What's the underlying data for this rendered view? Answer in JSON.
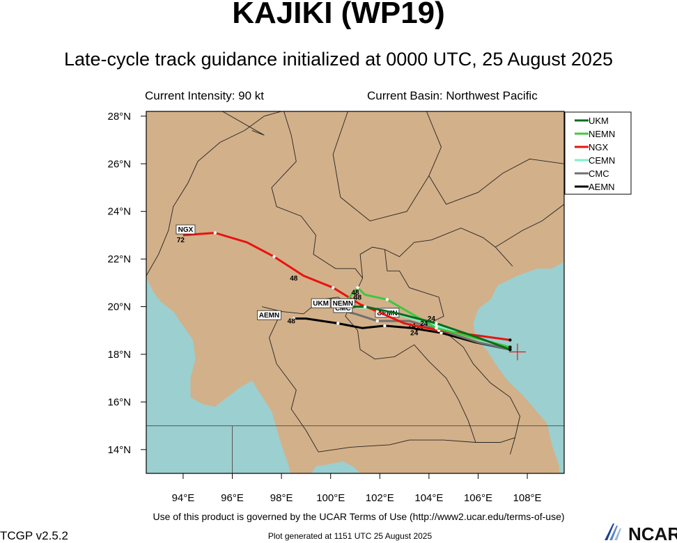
{
  "header": {
    "title": "KAJIKI (WP19)",
    "subtitle": "Late-cycle track guidance initialized at 0000 UTC, 25 August 2025",
    "intensity": "Current Intensity: 90 kt",
    "basin": "Current Basin: Northwest Pacific"
  },
  "map": {
    "lon_range": [
      92.5,
      109.5
    ],
    "lat_range": [
      13.0,
      28.2
    ],
    "x_ticks": [
      "94°E",
      "96°E",
      "98°E",
      "100°E",
      "102°E",
      "104°E",
      "106°E",
      "108°E"
    ],
    "y_ticks": [
      "28°N",
      "26°N",
      "24°N",
      "22°N",
      "20°N",
      "18°N",
      "16°N",
      "14°N"
    ],
    "land_color": "#d2b08a",
    "water_color": "#9ccfcf",
    "current_position": {
      "lon": 107.6,
      "lat": 18.1
    }
  },
  "legend": {
    "items": [
      {
        "name": "UKM",
        "color": "#0b6b1b"
      },
      {
        "name": "NEMN",
        "color": "#3fc83f"
      },
      {
        "name": "NGX",
        "color": "#e8130f"
      },
      {
        "name": "CEMN",
        "color": "#7ff0c8"
      },
      {
        "name": "CMC",
        "color": "#707070"
      },
      {
        "name": "AEMN",
        "color": "#000000"
      }
    ]
  },
  "tracks": [
    {
      "name": "UKM",
      "color": "#0b6b1b",
      "points": [
        [
          107.3,
          18.2
        ],
        [
          106.0,
          18.7
        ],
        [
          104.3,
          19.3
        ],
        [
          102.8,
          19.7
        ],
        [
          101.4,
          20.0
        ],
        [
          100.9,
          20.0
        ]
      ],
      "labels": [
        {
          "text": "24",
          "lon": 103.8,
          "lat": 19.2
        },
        {
          "text": "48",
          "lon": 101.0,
          "lat": 20.5
        }
      ],
      "tag": {
        "text": "UKM",
        "lon": 99.6,
        "lat": 20.1
      }
    },
    {
      "name": "NEMN",
      "color": "#3fc83f",
      "points": [
        [
          107.3,
          18.3
        ],
        [
          106.2,
          18.6
        ],
        [
          104.3,
          19.1
        ],
        [
          103.3,
          19.7
        ],
        [
          102.3,
          20.3
        ],
        [
          101.4,
          20.5
        ],
        [
          101.1,
          20.8
        ],
        [
          100.6,
          20.2
        ],
        [
          100.2,
          20.0
        ]
      ],
      "labels": [
        {
          "text": "24",
          "lon": 104.1,
          "lat": 19.4
        },
        {
          "text": "48",
          "lon": 101.1,
          "lat": 20.3
        }
      ],
      "tag": {
        "text": "NEMN",
        "lon": 100.5,
        "lat": 20.1
      }
    },
    {
      "name": "NGX",
      "color": "#e8130f",
      "points": [
        [
          107.3,
          18.6
        ],
        [
          105.9,
          18.8
        ],
        [
          104.4,
          19.0
        ],
        [
          103.0,
          19.3
        ],
        [
          101.9,
          19.8
        ],
        [
          101.2,
          20.1
        ],
        [
          100.1,
          20.8
        ],
        [
          98.9,
          21.3
        ],
        [
          97.7,
          22.1
        ],
        [
          96.6,
          22.7
        ],
        [
          95.3,
          23.1
        ],
        [
          94.0,
          23.0
        ]
      ],
      "labels": [
        {
          "text": "48",
          "lon": 98.5,
          "lat": 21.1
        },
        {
          "text": "72",
          "lon": 93.9,
          "lat": 22.7
        }
      ],
      "tag": {
        "text": "NGX",
        "lon": 94.1,
        "lat": 23.2
      }
    },
    {
      "name": "CEMN",
      "color": "#7ff0c8",
      "points": [
        [
          107.3,
          18.3
        ],
        [
          105.8,
          18.7
        ],
        [
          104.3,
          19.2
        ],
        [
          103.0,
          19.6
        ],
        [
          102.0,
          19.9
        ],
        [
          100.9,
          20.0
        ]
      ],
      "labels": [
        {
          "text": "24",
          "lon": 103.6,
          "lat": 19.0
        }
      ],
      "tag": {
        "text": "CEMN",
        "lon": 102.3,
        "lat": 19.7
      }
    },
    {
      "name": "CMC",
      "color": "#707070",
      "points": [
        [
          107.3,
          18.2
        ],
        [
          106.0,
          18.5
        ],
        [
          104.5,
          19.0
        ],
        [
          103.2,
          19.4
        ],
        [
          101.9,
          19.4
        ],
        [
          101.0,
          19.7
        ],
        [
          100.6,
          19.8
        ]
      ],
      "labels": [
        {
          "text": "24",
          "lon": 103.3,
          "lat": 19.1
        },
        {
          "text": "48",
          "lon": 100.5,
          "lat": 19.8
        }
      ],
      "tag": {
        "text": "CMC",
        "lon": 100.5,
        "lat": 19.9
      }
    },
    {
      "name": "AEMN",
      "color": "#000000",
      "points": [
        [
          107.3,
          18.2
        ],
        [
          105.9,
          18.5
        ],
        [
          104.5,
          18.9
        ],
        [
          103.3,
          19.1
        ],
        [
          102.2,
          19.2
        ],
        [
          101.3,
          19.1
        ],
        [
          100.3,
          19.3
        ],
        [
          99.0,
          19.5
        ],
        [
          98.5,
          19.5
        ]
      ],
      "labels": [
        {
          "text": "24",
          "lon": 103.4,
          "lat": 18.8
        },
        {
          "text": "48",
          "lon": 98.4,
          "lat": 19.3
        }
      ],
      "tag": {
        "text": "AEMN",
        "lon": 97.5,
        "lat": 19.6
      }
    }
  ],
  "footer": {
    "terms": "Use of this product is governed by the UCAR Terms of Use (http://www2.ucar.edu/terms-of-use)",
    "version": "TCGP v2.5.2",
    "generated": "Plot generated at 1151 UTC   25 August 2025",
    "logo_text": "NCAR"
  }
}
